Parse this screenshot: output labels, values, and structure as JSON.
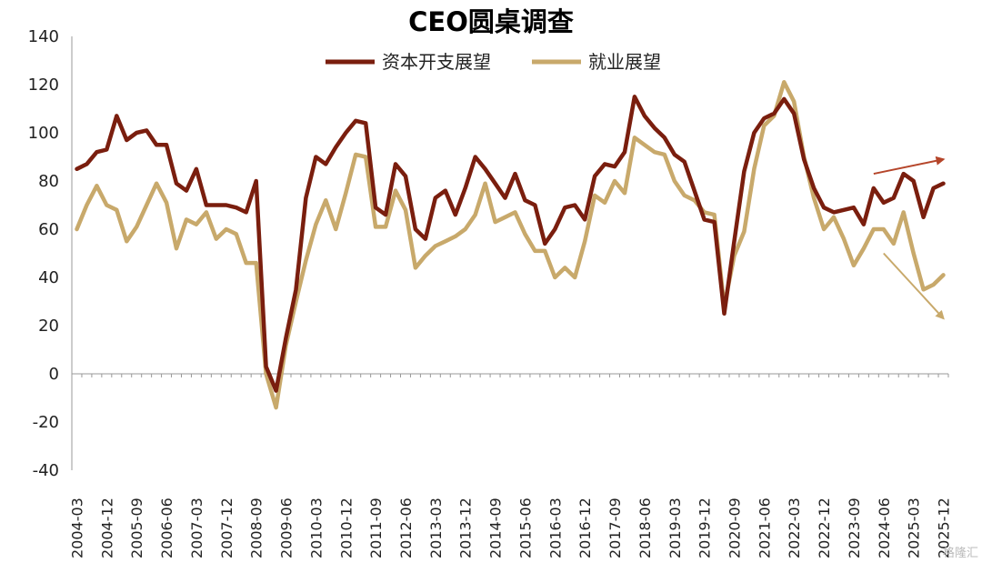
{
  "watermark": "格隆汇",
  "chart_data": {
    "type": "line",
    "title": "CEO圆桌调查",
    "xlabel": "",
    "ylabel": "",
    "ylim": [
      -40,
      140
    ],
    "yticks": [
      -40,
      -20,
      0,
      20,
      40,
      60,
      80,
      100,
      120,
      140
    ],
    "grid": false,
    "legend_position": "top",
    "xtick_labels": [
      "2004-03",
      "2004-12",
      "2005-09",
      "2006-06",
      "2007-03",
      "2007-12",
      "2008-09",
      "2009-06",
      "2010-03",
      "2010-12",
      "2011-09",
      "2012-06",
      "2013-03",
      "2013-12",
      "2014-09",
      "2015-06",
      "2016-03",
      "2016-12",
      "2017-09",
      "2018-06",
      "2019-03",
      "2019-12",
      "2020-09",
      "2021-06",
      "2022-03",
      "2022-12",
      "2023-09",
      "2024-06",
      "2025-03",
      "2025-12"
    ],
    "x": [
      "2004-03",
      "2004-06",
      "2004-09",
      "2004-12",
      "2005-03",
      "2005-06",
      "2005-09",
      "2005-12",
      "2006-03",
      "2006-06",
      "2006-09",
      "2006-12",
      "2007-03",
      "2007-06",
      "2007-09",
      "2007-12",
      "2008-03",
      "2008-06",
      "2008-09",
      "2008-12",
      "2009-03",
      "2009-06",
      "2009-09",
      "2009-12",
      "2010-03",
      "2010-06",
      "2010-09",
      "2010-12",
      "2011-03",
      "2011-06",
      "2011-09",
      "2011-12",
      "2012-03",
      "2012-06",
      "2012-09",
      "2012-12",
      "2013-03",
      "2013-06",
      "2013-09",
      "2013-12",
      "2014-03",
      "2014-06",
      "2014-09",
      "2014-12",
      "2015-03",
      "2015-06",
      "2015-09",
      "2015-12",
      "2016-03",
      "2016-06",
      "2016-09",
      "2016-12",
      "2017-03",
      "2017-06",
      "2017-09",
      "2017-12",
      "2018-03",
      "2018-06",
      "2018-09",
      "2018-12",
      "2019-03",
      "2019-06",
      "2019-09",
      "2019-12",
      "2020-03",
      "2020-06",
      "2020-09",
      "2020-12",
      "2021-03",
      "2021-06",
      "2021-09",
      "2021-12",
      "2022-03",
      "2022-06",
      "2022-09",
      "2022-12",
      "2023-03",
      "2023-06",
      "2023-09",
      "2023-12",
      "2024-03",
      "2024-06",
      "2024-09",
      "2024-12",
      "2025-03",
      "2025-06",
      "2025-09",
      "2025-12"
    ],
    "series": [
      {
        "name": "资本开支展望",
        "color": "#7a1e0e",
        "values": [
          85,
          87,
          92,
          93,
          107,
          97,
          100,
          101,
          95,
          95,
          79,
          76,
          85,
          70,
          70,
          70,
          69,
          67,
          80,
          3,
          -7,
          15,
          35,
          73,
          90,
          87,
          94,
          100,
          105,
          104,
          69,
          66,
          87,
          82,
          60,
          56,
          73,
          76,
          66,
          77,
          90,
          85,
          79,
          73,
          83,
          72,
          70,
          54,
          60,
          69,
          70,
          64,
          82,
          87,
          86,
          92,
          115,
          107,
          102,
          98,
          91,
          88,
          76,
          64,
          63,
          25,
          55,
          84,
          100,
          106,
          108,
          114,
          108,
          89,
          77,
          69,
          67,
          68,
          69,
          62,
          77,
          71,
          73,
          83,
          80,
          65,
          77,
          79
        ]
      },
      {
        "name": "就业展望",
        "color": "#c8a96b",
        "values": [
          60,
          70,
          78,
          70,
          68,
          55,
          61,
          70,
          79,
          71,
          52,
          64,
          62,
          67,
          56,
          60,
          58,
          46,
          46,
          0,
          -14,
          12,
          30,
          47,
          62,
          72,
          60,
          75,
          91,
          90,
          61,
          61,
          76,
          68,
          44,
          49,
          53,
          55,
          57,
          60,
          66,
          79,
          63,
          65,
          67,
          58,
          51,
          51,
          40,
          44,
          40,
          55,
          74,
          71,
          80,
          75,
          98,
          95,
          92,
          91,
          80,
          74,
          72,
          67,
          66,
          28,
          49,
          59,
          85,
          103,
          107,
          121,
          113,
          90,
          73,
          60,
          65,
          56,
          45,
          52,
          60,
          60,
          54,
          67,
          50,
          35,
          37,
          41
        ]
      }
    ],
    "annotations": [
      {
        "type": "arrow",
        "color": "#b5452a",
        "from": [
          "2024-03",
          83
        ],
        "to": [
          "2025-12",
          89
        ]
      },
      {
        "type": "arrow",
        "color": "#c8a96b",
        "from": [
          "2024-06",
          50
        ],
        "to": [
          "2025-12",
          23
        ]
      }
    ]
  }
}
